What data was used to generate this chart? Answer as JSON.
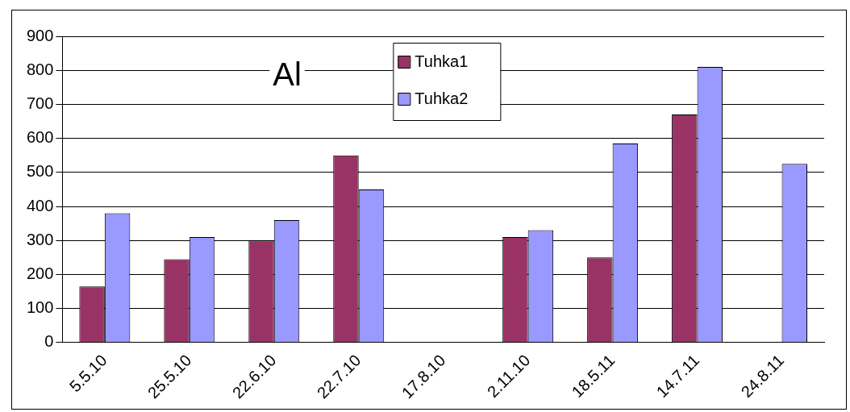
{
  "chart_data": {
    "type": "bar",
    "title": "Al",
    "categories": [
      "5.5.10",
      "25.5.10",
      "22.6.10",
      "22.7.10",
      "17.8.10",
      "2.11.10",
      "18.5.11",
      "14.7.11",
      "24.8.11"
    ],
    "series": [
      {
        "name": "Tuhka1",
        "color": "#993366",
        "values": [
          165,
          245,
          300,
          550,
          null,
          310,
          250,
          670,
          null
        ]
      },
      {
        "name": "Tuhka2",
        "color": "#9999ff",
        "values": [
          380,
          310,
          360,
          450,
          null,
          330,
          585,
          810,
          525
        ]
      }
    ],
    "ylim": [
      0,
      900
    ],
    "yticks": [
      0,
      100,
      200,
      300,
      400,
      500,
      600,
      700,
      800,
      900
    ],
    "grid": "y",
    "legend": "top"
  }
}
